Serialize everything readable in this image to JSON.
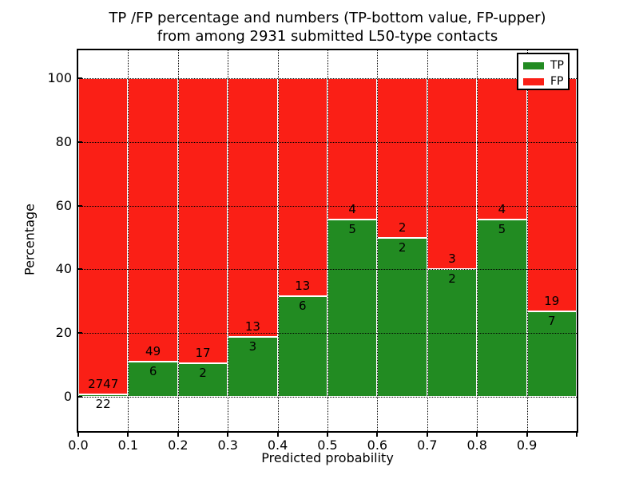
{
  "figure": {
    "title_line1": "TP /FP percentage and numbers (TP-bottom value, FP-upper)",
    "title_line2": "from among 2931 submitted L50-type contacts"
  },
  "chart_data": {
    "type": "bar",
    "stacked": true,
    "normalized": "each bar stacked to 100%",
    "title": "TP /FP percentage and numbers (TP-bottom value, FP-upper)\nfrom among 2931 submitted L50-type contacts",
    "xlabel": "Predicted probability",
    "ylabel": "Percentage",
    "total_submitted_contacts": 2931,
    "categories": [
      "0.0-0.1",
      "0.1-0.2",
      "0.2-0.3",
      "0.3-0.4",
      "0.4-0.5",
      "0.5-0.6",
      "0.6-0.7",
      "0.7-0.8",
      "0.8-0.9",
      "0.9-1.0"
    ],
    "x_tick_labels": [
      "0.0",
      "0.1",
      "0.2",
      "0.3",
      "0.4",
      "0.5",
      "0.6",
      "0.7",
      "0.8",
      "0.9"
    ],
    "y_tick_values": [
      0,
      20,
      40,
      60,
      80,
      100
    ],
    "xlim": [
      0.0,
      1.0
    ],
    "ylim_display": [
      -10.8,
      108.8
    ],
    "grid": true,
    "grid_style": "dotted",
    "bar_edge_color": "#ffffff",
    "series": [
      {
        "name": "TP",
        "color": "#228b22",
        "counts": [
          22,
          6,
          2,
          3,
          6,
          5,
          2,
          2,
          5,
          7
        ]
      },
      {
        "name": "FP",
        "color": "#fa1f16",
        "counts": [
          2747,
          49,
          17,
          13,
          13,
          4,
          2,
          3,
          4,
          19
        ]
      }
    ],
    "tp_percent_per_bin": [
      0.79,
      10.91,
      10.53,
      18.75,
      31.58,
      55.56,
      50.0,
      40.0,
      55.56,
      26.92
    ],
    "legend": {
      "position": "upper right",
      "entries": [
        {
          "label": "TP",
          "color": "#228b22"
        },
        {
          "label": "FP",
          "color": "#fa1f16"
        }
      ]
    }
  }
}
